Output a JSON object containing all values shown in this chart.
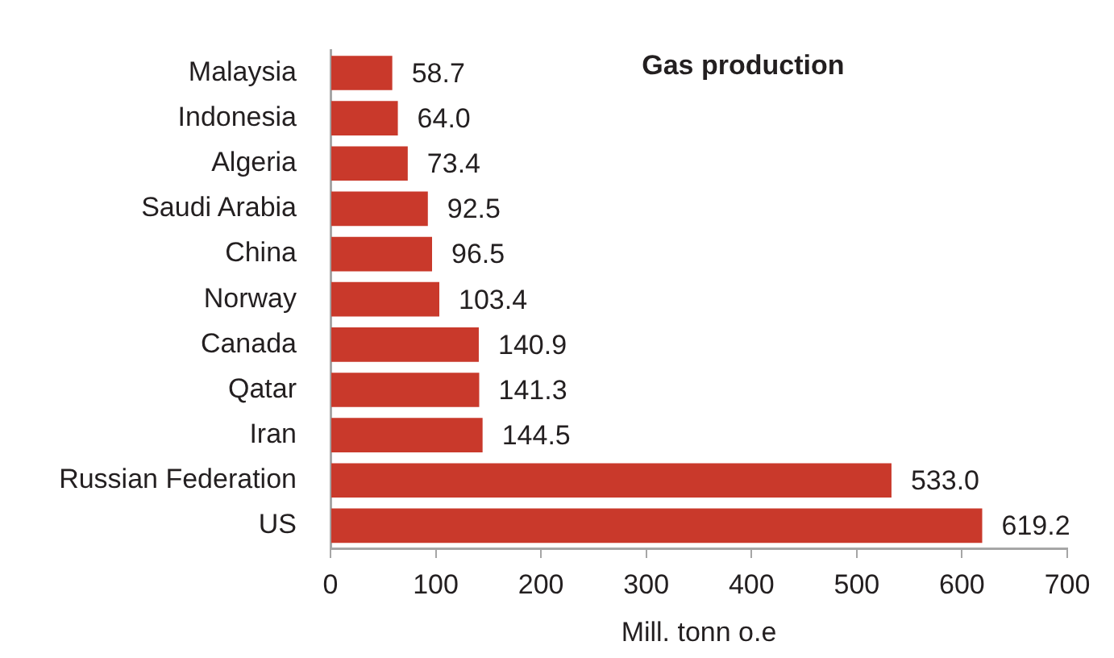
{
  "chart_data": {
    "type": "bar",
    "orientation": "horizontal",
    "title": "Gas production",
    "xlabel": "Mill. tonn o.e",
    "categories": [
      "Malaysia",
      "Indonesia",
      "Algeria",
      "Saudi Arabia",
      "China",
      "Norway",
      "Canada",
      "Qatar",
      "Iran",
      "Russian Federation",
      "US"
    ],
    "values": [
      58.7,
      64.0,
      73.4,
      92.5,
      96.5,
      103.4,
      140.9,
      141.3,
      144.5,
      533.0,
      619.2
    ],
    "value_labels": [
      "58.7",
      "64.0",
      "73.4",
      "92.5",
      "96.5",
      "103.4",
      "140.9",
      "141.3",
      "144.5",
      "533.0",
      "619.2"
    ],
    "color": "#c9392b",
    "xlim": [
      0,
      700
    ],
    "xticks": [
      0,
      100,
      200,
      300,
      400,
      500,
      600,
      700
    ]
  }
}
